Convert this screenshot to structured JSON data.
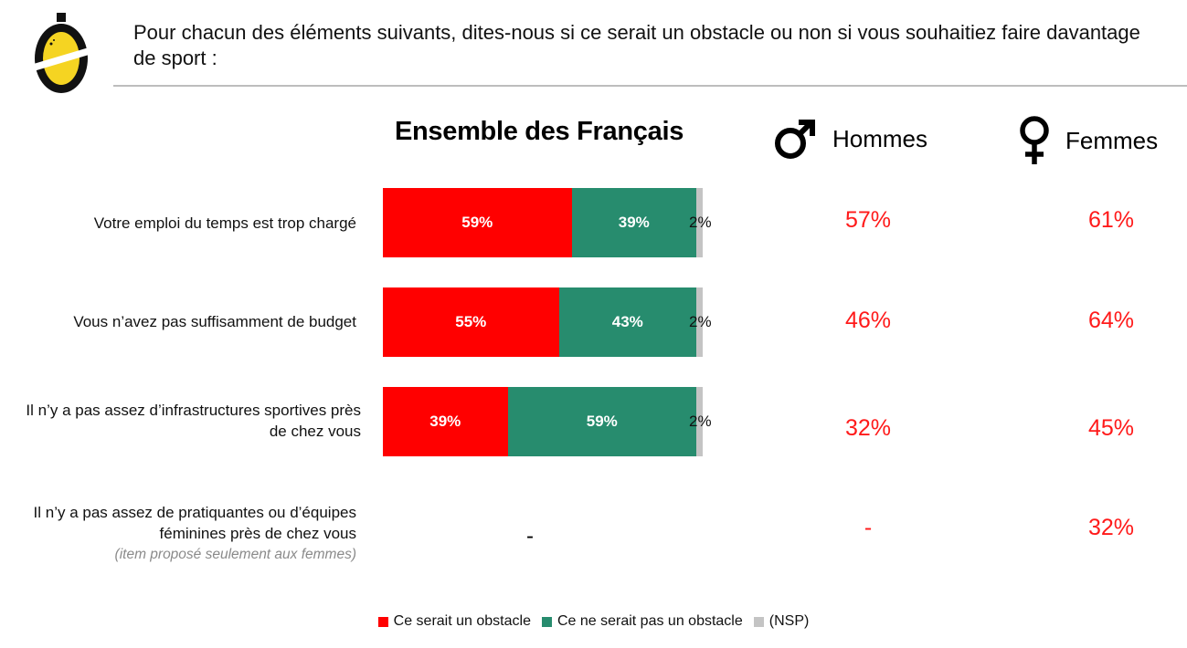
{
  "question": "Pour chacun des éléments suivants, dites-nous si ce serait un obstacle ou non si vous souhaitiez faire davantage de sport :",
  "headers": {
    "main": "Ensemble des Français",
    "hommes": "Hommes",
    "femmes": "Femmes"
  },
  "icons": {
    "logo": "brand-logo-icon",
    "hommes": "male-symbol-icon",
    "femmes": "female-symbol-icon"
  },
  "colors": {
    "obstacle": "#ff0000",
    "not_obstacle": "#278c6e",
    "nsp": "#c4c4c4",
    "values": "#ff1a1a"
  },
  "rows": [
    {
      "label": "Votre emploi du temps est trop chargé",
      "note": "",
      "total_dash": "",
      "obstacle_label": "59%",
      "not_obstacle_label": "39%",
      "nsp_label": "2%",
      "hommes": "57%",
      "femmes": "61%"
    },
    {
      "label": "Vous n’avez pas suffisamment de budget",
      "note": "",
      "total_dash": "",
      "obstacle_label": "55%",
      "not_obstacle_label": "43%",
      "nsp_label": "2%",
      "hommes": "46%",
      "femmes": "64%"
    },
    {
      "label": "Il n’y a pas assez d’infrastructures sportives près de chez vous",
      "note": "",
      "total_dash": "",
      "obstacle_label": "39%",
      "not_obstacle_label": "59%",
      "nsp_label": "2%",
      "hommes": "32%",
      "femmes": "45%"
    },
    {
      "label": "Il n’y a pas assez de pratiquantes ou d’équipes féminines près de chez vous",
      "note": "(item proposé seulement aux femmes)",
      "total_dash": "-",
      "hommes": "-",
      "femmes": "32%"
    }
  ],
  "chart_data": {
    "type": "bar",
    "orientation": "horizontal",
    "stacked": true,
    "title": "Ensemble des Français",
    "categories": [
      "Votre emploi du temps est trop chargé",
      "Vous n’avez pas suffisamment de budget",
      "Il n’y a pas assez d’infrastructures sportives près de chez vous"
    ],
    "series": [
      {
        "name": "Ce serait un obstacle",
        "values": [
          59,
          55,
          39
        ]
      },
      {
        "name": "Ce ne serait pas un obstacle",
        "values": [
          39,
          43,
          59
        ]
      },
      {
        "name": "(NSP)",
        "values": [
          2,
          2,
          2
        ]
      }
    ],
    "xlim": [
      0,
      100
    ],
    "grid": false,
    "legend": "bottom",
    "legend_entries": [
      "Ce serait un obstacle",
      "Ce ne serait pas un obstacle",
      "(NSP)"
    ]
  }
}
